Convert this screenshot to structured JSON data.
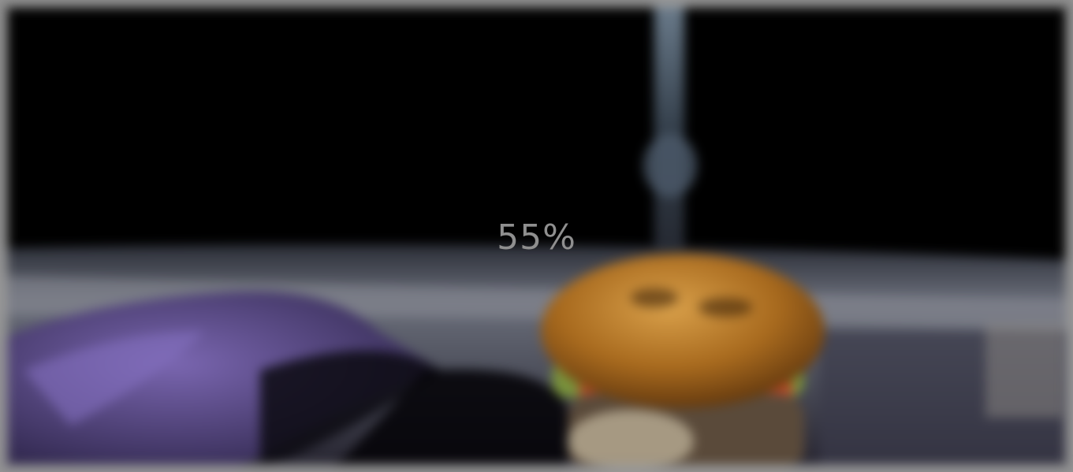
{
  "loader": {
    "progress_label": "55%",
    "progress": 0.55
  },
  "background": {
    "subject": "blurred-burger-photo",
    "colors": {
      "backdrop": "#000000",
      "surface": "#5e6270",
      "cloth": "#5d4c8a",
      "bun": "#b87a25",
      "frame": "#9a9a9a"
    }
  }
}
